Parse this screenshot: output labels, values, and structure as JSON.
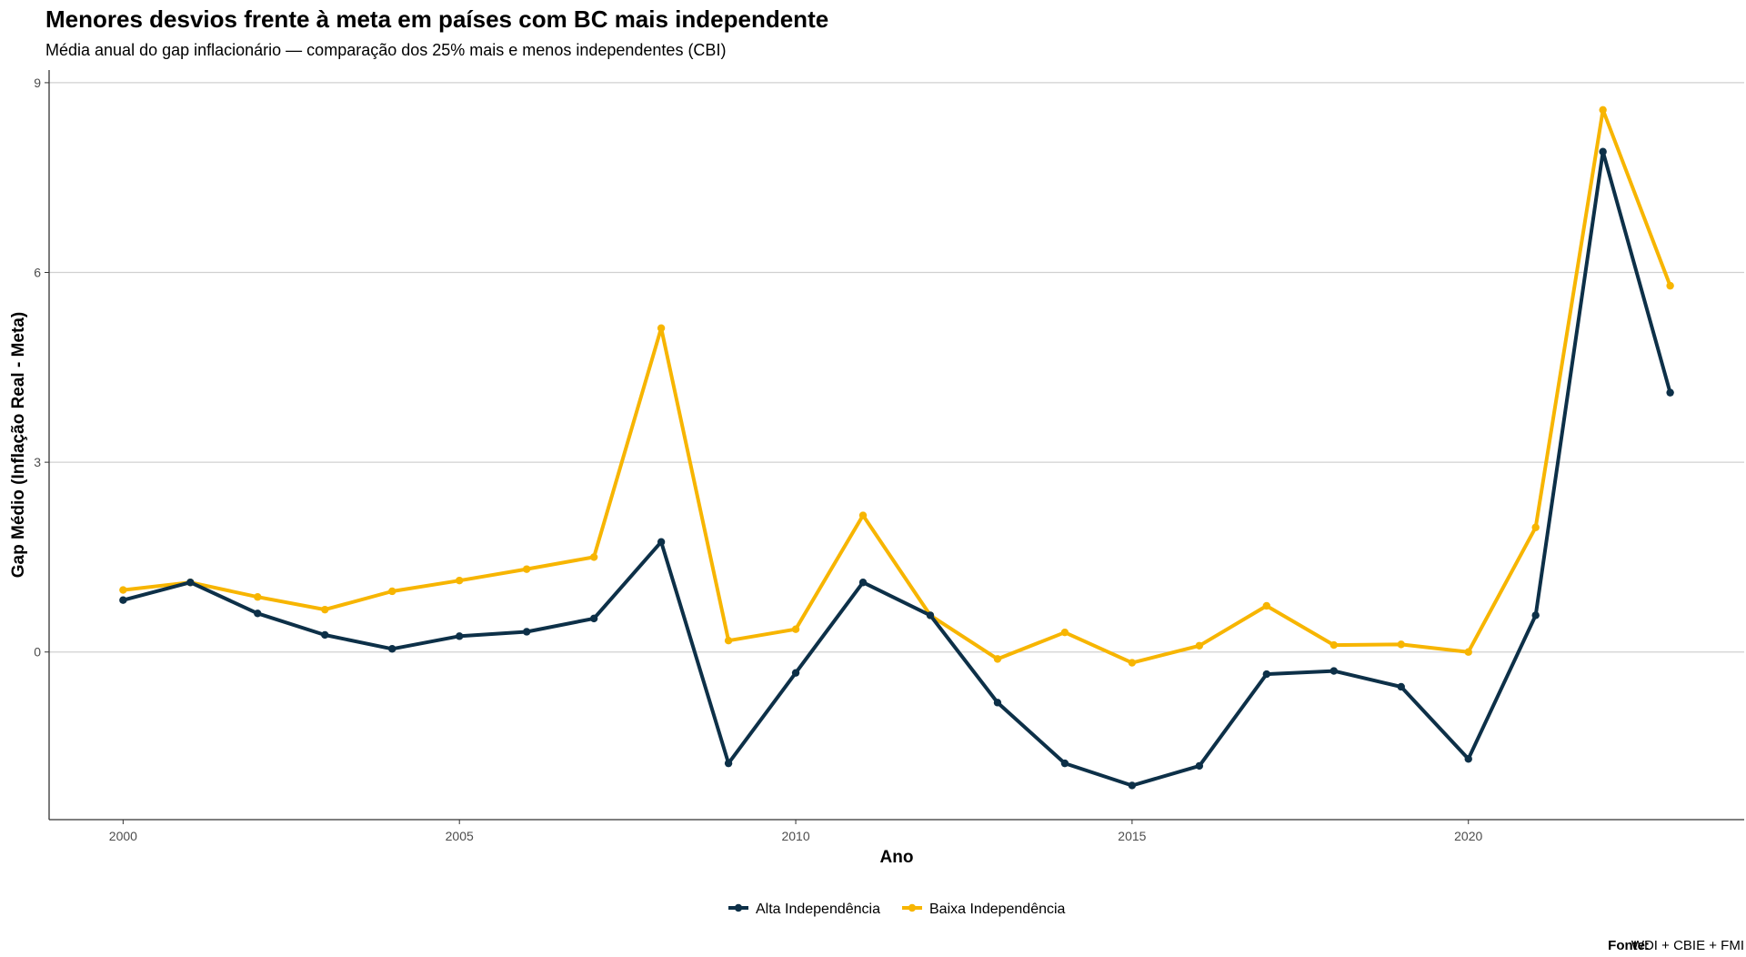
{
  "chart_data": {
    "type": "line",
    "title": "Menores desvios frente à meta em países com BC mais independente",
    "subtitle": "Média anual do gap inflacionário — comparação dos 25% mais e menos independentes (CBI)",
    "xlabel": "Ano",
    "ylabel": "Gap Médio (Inflação Real - Meta)",
    "xlim": [
      1998.9,
      2024.1
    ],
    "ylim": [
      -2.65,
      9.2
    ],
    "x_ticks": [
      2000,
      2005,
      2010,
      2015,
      2020
    ],
    "y_ticks": [
      0,
      3,
      6,
      9
    ],
    "grid": "horizontal major",
    "legend_position": "bottom",
    "x": [
      2000,
      2001,
      2002,
      2003,
      2004,
      2005,
      2006,
      2007,
      2008,
      2009,
      2010,
      2011,
      2012,
      2013,
      2014,
      2015,
      2016,
      2017,
      2018,
      2019,
      2020,
      2021,
      2022,
      2023
    ],
    "series": [
      {
        "name": "Alta Independência",
        "color": "#0d3048",
        "values": [
          0.82,
          1.1,
          0.61,
          0.27,
          0.05,
          0.25,
          0.32,
          0.53,
          1.74,
          -1.76,
          -0.33,
          1.1,
          0.58,
          -0.8,
          -1.76,
          -2.11,
          -1.8,
          -0.35,
          -0.3,
          -0.55,
          -1.69,
          0.58,
          7.91,
          4.1
        ]
      },
      {
        "name": "Baixa Independência",
        "color": "#f7b500",
        "values": [
          0.98,
          1.1,
          0.87,
          0.67,
          0.96,
          1.13,
          1.31,
          1.5,
          5.12,
          0.18,
          0.36,
          2.16,
          0.58,
          -0.11,
          0.31,
          -0.17,
          0.1,
          0.73,
          0.11,
          0.12,
          0.0,
          1.97,
          8.57,
          5.79
        ]
      }
    ]
  },
  "caption": {
    "label": "Fonte:",
    "text": "WDI + CBIE + FMI"
  }
}
